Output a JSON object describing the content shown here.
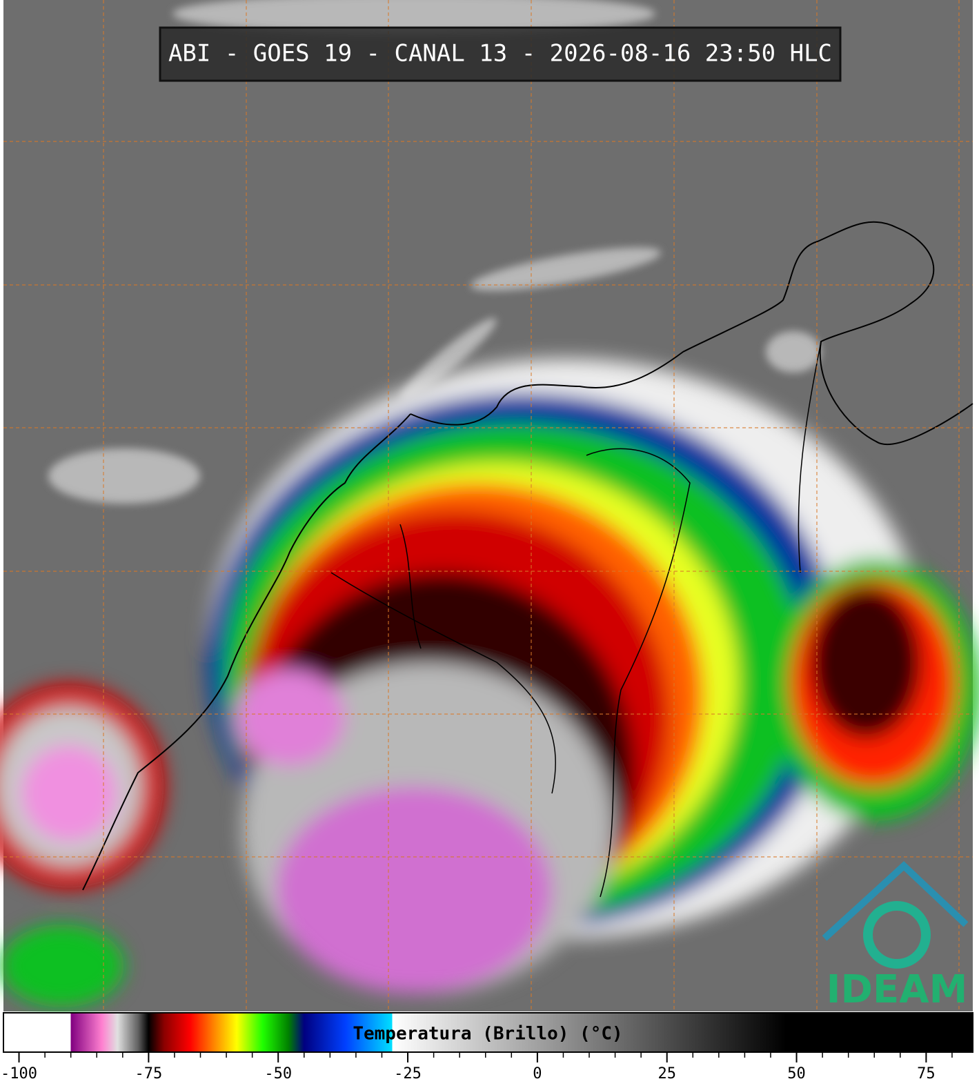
{
  "header": {
    "title": "ABI - GOES 19 - CANAL 13 - 2026-08-16 23:50 HLC"
  },
  "logo": {
    "text": "IDEAM"
  },
  "colorbar": {
    "label": "Temperatura (Brillo) (°C)",
    "range": [
      -103,
      84
    ],
    "ticks": [
      -100,
      -75,
      -50,
      -25,
      0,
      25,
      50,
      75
    ],
    "minor_tick_step": 5,
    "stops": [
      {
        "value": -103,
        "color": "#ffffff"
      },
      {
        "value": -90,
        "color": "#ffffff"
      },
      {
        "value": -90,
        "color": "#800080"
      },
      {
        "value": -84,
        "color": "#ff80d0"
      },
      {
        "value": -81,
        "color": "#e0e0e0"
      },
      {
        "value": -77,
        "color": "#606060"
      },
      {
        "value": -75,
        "color": "#000000"
      },
      {
        "value": -72,
        "color": "#8b0000"
      },
      {
        "value": -67,
        "color": "#ff0000"
      },
      {
        "value": -62,
        "color": "#ff9000"
      },
      {
        "value": -58,
        "color": "#ffff00"
      },
      {
        "value": -53,
        "color": "#20ff00"
      },
      {
        "value": -48,
        "color": "#008000"
      },
      {
        "value": -45,
        "color": "#000080"
      },
      {
        "value": -37,
        "color": "#0040ff"
      },
      {
        "value": -28,
        "color": "#00e0ff"
      },
      {
        "value": -28,
        "color": "#ffffff"
      },
      {
        "value": 48,
        "color": "#000000"
      },
      {
        "value": 84,
        "color": "#000000"
      }
    ]
  }
}
